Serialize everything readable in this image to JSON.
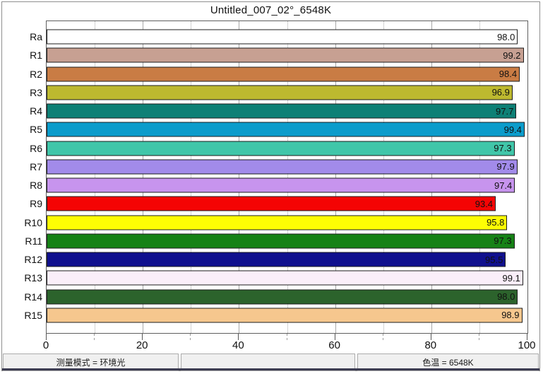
{
  "window": {
    "title": "Untitled_007_02°_6548K"
  },
  "chart_data": {
    "type": "bar",
    "orientation": "horizontal",
    "title": "Untitled_007_02°_6548K",
    "categories": [
      "Ra",
      "R1",
      "R2",
      "R3",
      "R4",
      "R5",
      "R6",
      "R7",
      "R8",
      "R9",
      "R10",
      "R11",
      "R12",
      "R13",
      "R14",
      "R15"
    ],
    "values": [
      98.0,
      99.2,
      98.4,
      96.9,
      97.7,
      99.4,
      97.3,
      97.9,
      97.4,
      93.4,
      95.8,
      97.3,
      95.5,
      99.1,
      98.0,
      98.9
    ],
    "value_labels": [
      "98.0",
      "99.2",
      "98.4",
      "96.9",
      "97.7",
      "99.4",
      "97.3",
      "97.9",
      "97.4",
      "93.4",
      "95.8",
      "97.3",
      "95.5",
      "99.1",
      "98.0",
      "98.9"
    ],
    "bar_colors": [
      "#ffffff",
      "#c7a092",
      "#c97c44",
      "#bdb92f",
      "#0e8076",
      "#0b9ccb",
      "#40c6a9",
      "#a28bea",
      "#c794ee",
      "#f40404",
      "#fdfd04",
      "#168216",
      "#10108e",
      "#faeef9",
      "#2c632c",
      "#f6c78e"
    ],
    "bar_border_color": "#1c1c1c",
    "value_text_color": "#111111",
    "xlabel": "",
    "ylabel": "",
    "xlim": [
      0,
      100
    ],
    "x_major_ticks": [
      0,
      20,
      40,
      60,
      80,
      100
    ],
    "x_minor_ticks": [
      10,
      30,
      50,
      70,
      90
    ],
    "x_tick_labels": [
      "0",
      "20",
      "40",
      "60",
      "80",
      "100"
    ],
    "grid": "vertical; major solid, minor dotted",
    "legend": "none"
  },
  "status_bar": {
    "cells": [
      {
        "text": "测量模式 = 环境光"
      },
      {
        "text": ""
      },
      {
        "text": "色温 = 6548K"
      }
    ]
  }
}
